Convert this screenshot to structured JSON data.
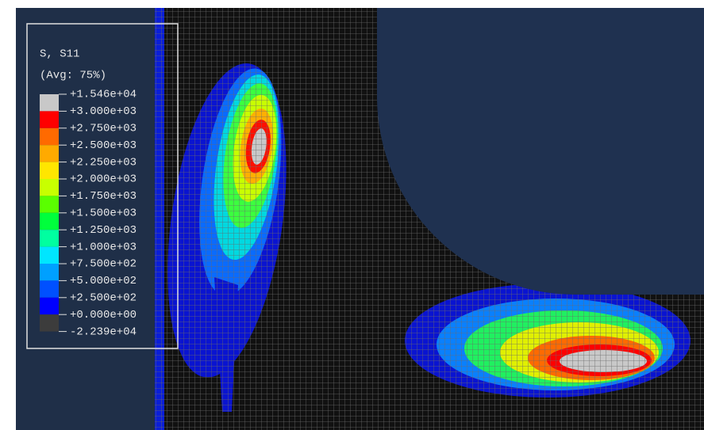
{
  "legend": {
    "title": "S, S11",
    "subtitle": "(Avg: 75%)",
    "labels": [
      "+1.546e+04",
      "+3.000e+03",
      "+2.750e+03",
      "+2.500e+03",
      "+2.250e+03",
      "+2.000e+03",
      "+1.750e+03",
      "+1.500e+03",
      "+1.250e+03",
      "+1.000e+03",
      "+7.500e+02",
      "+5.000e+02",
      "+2.500e+02",
      "+0.000e+00",
      "-2.239e+04"
    ],
    "colors": [
      "#c8c8c8",
      "#ff0000",
      "#ff6a00",
      "#ffaa00",
      "#ffe600",
      "#c8ff00",
      "#5aff00",
      "#00ff3c",
      "#00ffa0",
      "#00e6ff",
      "#00a0ff",
      "#0050ff",
      "#0000ff",
      "#3c3c3c"
    ]
  }
}
